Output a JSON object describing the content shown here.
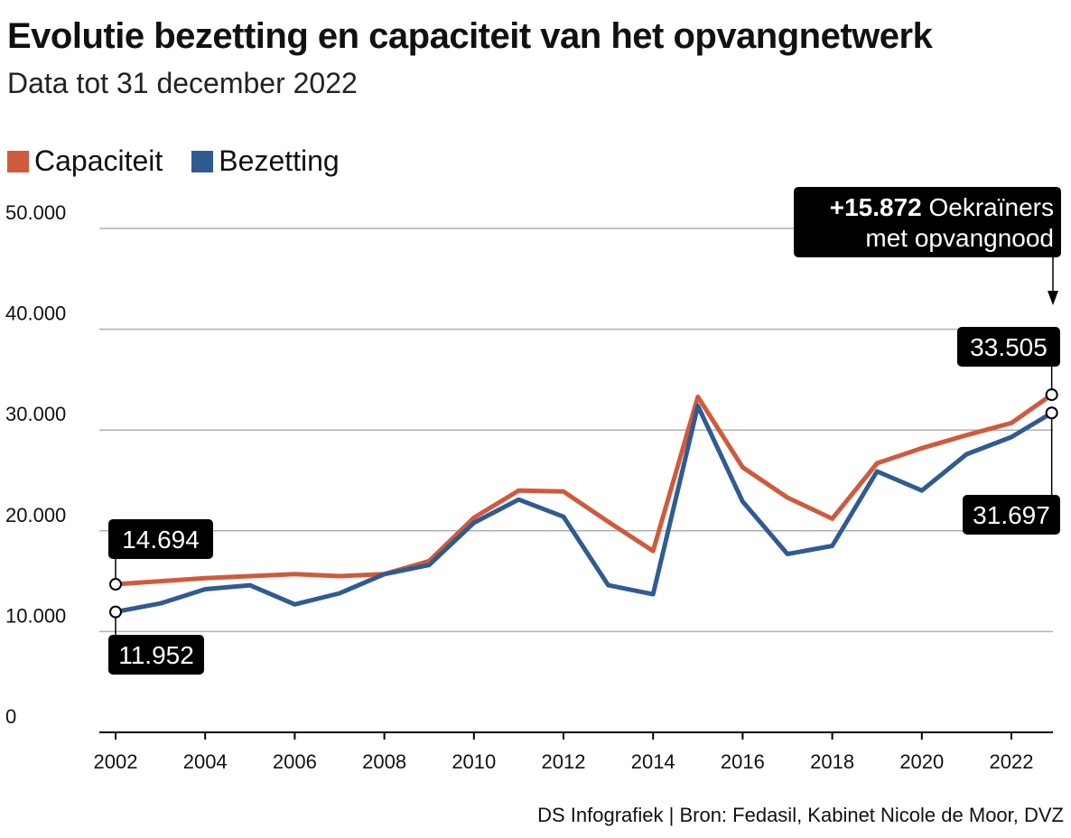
{
  "title": "Evolutie bezetting en capaciteit van het opvangnetwerk",
  "subtitle": "Data tot 31 december 2022",
  "source": "DS Infografiek | Bron: Fedasil, Kabinet Nicole de Moor, DVZ",
  "colors": {
    "capaciteit": "#d05a3c",
    "bezetting": "#2f5b93",
    "grid": "#b0b0b0",
    "label_bg": "#000000"
  },
  "chart_data": {
    "type": "line",
    "x": [
      2002,
      2003,
      2004,
      2005,
      2006,
      2007,
      2008,
      2009,
      2010,
      2011,
      2012,
      2013,
      2014,
      2015,
      2016,
      2017,
      2018,
      2019,
      2020,
      2021,
      2022,
      2022.9
    ],
    "series": [
      {
        "name": "Capaciteit",
        "color": "#d05a3c",
        "values": [
          14694,
          15000,
          15300,
          15500,
          15700,
          15500,
          15700,
          17000,
          21300,
          24000,
          23900,
          20900,
          18000,
          33300,
          26300,
          23300,
          21200,
          26700,
          28200,
          29500,
          30700,
          33505
        ]
      },
      {
        "name": "Bezetting",
        "color": "#2f5b93",
        "values": [
          11952,
          12800,
          14200,
          14600,
          12700,
          13800,
          15700,
          16600,
          20800,
          23100,
          21400,
          14600,
          13700,
          32400,
          22900,
          17700,
          18500,
          25900,
          24000,
          27600,
          29300,
          31697
        ]
      }
    ],
    "ylim": [
      0,
      50000
    ],
    "yticks": [
      0,
      10000,
      20000,
      30000,
      40000,
      50000
    ],
    "ytick_labels": [
      "0",
      "10.000",
      "20.000",
      "30.000",
      "40.000",
      "50.000"
    ],
    "xticks": [
      2002,
      2004,
      2006,
      2008,
      2010,
      2012,
      2014,
      2016,
      2018,
      2020,
      2022
    ],
    "xtick_labels": [
      "2002",
      "2004",
      "2006",
      "2008",
      "2010",
      "2012",
      "2014",
      "2016",
      "2018",
      "2020",
      "2022"
    ],
    "grid": true,
    "legend_position": "top-left",
    "labels": {
      "start_capaciteit": "14.694",
      "start_bezetting": "11.952",
      "end_capaciteit": "33.505",
      "end_bezetting": "31.697"
    },
    "annotation": {
      "bold": "+15.872",
      "text_line1": " Oekraïners",
      "text_line2": "met opvangnood"
    }
  }
}
